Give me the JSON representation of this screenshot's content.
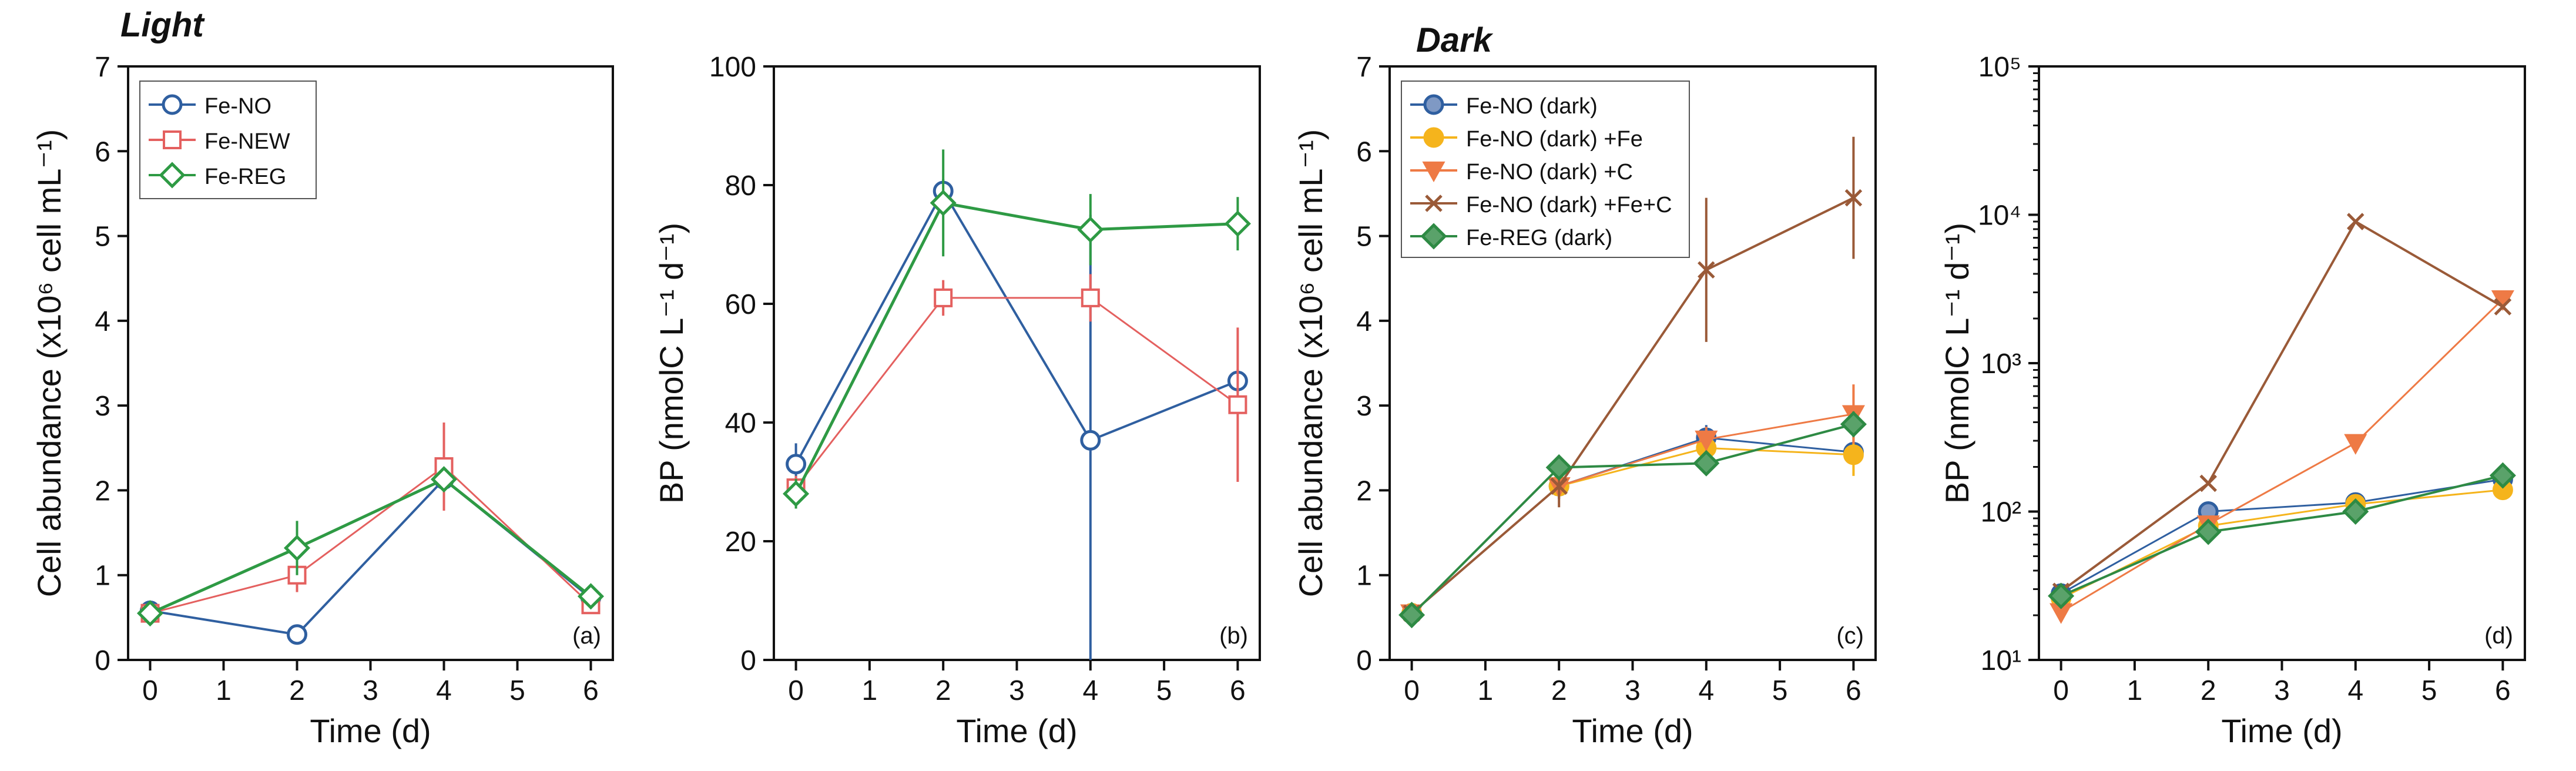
{
  "headings": {
    "light": "Light",
    "dark": "Dark"
  },
  "colors": {
    "fe_no": "#2f5fa0",
    "fe_new": "#e4605f",
    "fe_reg": "#2e9a44",
    "fe_no_dark": "#2f5fa0",
    "fe_no_dark_fe": "#f5b41c",
    "fe_no_dark_c": "#ee7a45",
    "fe_no_dark_fe_c": "#9a5a38",
    "fe_reg_dark": "#2e8a44"
  },
  "chart_data": [
    {
      "id": "a",
      "type": "line",
      "panel_label": "(a)",
      "xlabel": "Time (d)",
      "ylabel": "Cell abundance (x10⁶ cell mL⁻¹)",
      "xlim": [
        -0.3,
        6.3
      ],
      "ylim": [
        0,
        7
      ],
      "yscale": "linear",
      "xticks": [
        0,
        1,
        2,
        3,
        4,
        5,
        6
      ],
      "xtick_labels": [
        "0",
        "1",
        "2",
        "3",
        "4",
        "5",
        "6"
      ],
      "yticks": [
        0,
        1,
        2,
        3,
        4,
        5,
        6,
        7
      ],
      "ytick_labels": [
        "0",
        "1",
        "2",
        "3",
        "4",
        "5",
        "6",
        "7"
      ],
      "legend": "top-left",
      "series": [
        {
          "name": "Fe-NO",
          "color": "fe_no",
          "marker": "circle",
          "fill": "none",
          "lw": 4,
          "x": [
            0,
            2,
            4,
            6
          ],
          "y": [
            0.58,
            0.3,
            2.13,
            0.73
          ],
          "err": [
            0.05,
            0.05,
            0.1,
            0.08
          ]
        },
        {
          "name": "Fe-NEW",
          "color": "fe_new",
          "marker": "square",
          "fill": "none",
          "lw": 3,
          "x": [
            0,
            2,
            4,
            6
          ],
          "y": [
            0.55,
            1.0,
            2.28,
            0.65
          ],
          "err": [
            0.05,
            0.2,
            0.52,
            0.1
          ]
        },
        {
          "name": "Fe-REG",
          "color": "fe_reg",
          "marker": "diamond",
          "fill": "none",
          "lw": 5,
          "x": [
            0,
            2,
            4,
            6
          ],
          "y": [
            0.55,
            1.32,
            2.13,
            0.75
          ],
          "err": [
            0.05,
            0.32,
            0.1,
            0.05
          ]
        }
      ]
    },
    {
      "id": "b",
      "type": "line",
      "panel_label": "(b)",
      "xlabel": "Time (d)",
      "ylabel": "BP (nmolC L⁻¹ d⁻¹)",
      "xlim": [
        -0.3,
        6.3
      ],
      "ylim": [
        0,
        100
      ],
      "yscale": "linear",
      "xticks": [
        0,
        1,
        2,
        3,
        4,
        5,
        6
      ],
      "xtick_labels": [
        "0",
        "1",
        "2",
        "3",
        "4",
        "5",
        "6"
      ],
      "yticks": [
        0,
        20,
        40,
        60,
        80,
        100
      ],
      "ytick_labels": [
        "0",
        "20",
        "40",
        "60",
        "80",
        "100"
      ],
      "legend": "none",
      "series": [
        {
          "name": "Fe-NO",
          "color": "fe_no",
          "marker": "circle",
          "fill": "none",
          "lw": 4,
          "x": [
            0,
            2,
            4,
            6
          ],
          "y": [
            33,
            79,
            37,
            47
          ],
          "err": [
            3.5,
            2,
            38,
            2
          ]
        },
        {
          "name": "Fe-NEW",
          "color": "fe_new",
          "marker": "square",
          "fill": "none",
          "lw": 3,
          "x": [
            0,
            2,
            4,
            6
          ],
          "y": [
            29,
            61,
            61,
            43
          ],
          "err": [
            2,
            3,
            4,
            13
          ]
        },
        {
          "name": "Fe-REG",
          "color": "fe_reg",
          "marker": "diamond",
          "fill": "none",
          "lw": 5,
          "x": [
            0,
            2,
            4,
            6
          ],
          "y": [
            28,
            77,
            72.5,
            73.5
          ],
          "err": [
            2.5,
            9,
            6,
            4.5
          ]
        }
      ]
    },
    {
      "id": "c",
      "type": "line",
      "panel_label": "(c)",
      "xlabel": "Time (d)",
      "ylabel": "Cell abundance (x10⁶ cell mL⁻¹)",
      "xlim": [
        -0.3,
        6.3
      ],
      "ylim": [
        0,
        7
      ],
      "yscale": "linear",
      "xticks": [
        0,
        1,
        2,
        3,
        4,
        5,
        6
      ],
      "xtick_labels": [
        "0",
        "1",
        "2",
        "3",
        "4",
        "5",
        "6"
      ],
      "yticks": [
        0,
        1,
        2,
        3,
        4,
        5,
        6,
        7
      ],
      "ytick_labels": [
        "0",
        "1",
        "2",
        "3",
        "4",
        "5",
        "6",
        "7"
      ],
      "legend": "top-left",
      "series": [
        {
          "name": "Fe-NO (dark)",
          "color": "fe_no_dark",
          "marker": "circle",
          "fill": "#7f99c4",
          "lw": 3,
          "x": [
            0,
            2,
            4,
            6
          ],
          "y": [
            0.55,
            2.05,
            2.62,
            2.45
          ],
          "err": [
            0.05,
            0.15,
            0.15,
            0.1
          ]
        },
        {
          "name": "Fe-NO (dark) +Fe",
          "color": "fe_no_dark_fe",
          "marker": "circle",
          "fill": "#f5b41c",
          "lw": 3,
          "x": [
            0,
            2,
            4,
            6
          ],
          "y": [
            0.55,
            2.05,
            2.5,
            2.42
          ],
          "err": [
            0.05,
            0.1,
            0.1,
            0.25
          ]
        },
        {
          "name": "Fe-NO (dark) +C",
          "color": "fe_no_dark_c",
          "marker": "triangle-down",
          "fill": "#ee7a45",
          "lw": 3,
          "x": [
            0,
            2,
            4,
            6
          ],
          "y": [
            0.55,
            2.05,
            2.6,
            2.9
          ],
          "err": [
            0.05,
            0.1,
            0.15,
            0.35
          ]
        },
        {
          "name": "Fe-NO (dark) +Fe+C",
          "color": "fe_no_dark_fe_c",
          "marker": "x",
          "fill": "none",
          "lw": 4,
          "x": [
            0,
            2,
            4,
            6
          ],
          "y": [
            0.55,
            2.05,
            4.6,
            5.45
          ],
          "err": [
            0.05,
            0.25,
            0.85,
            0.72
          ]
        },
        {
          "name": "Fe-REG (dark)",
          "color": "fe_reg_dark",
          "marker": "diamond",
          "fill": "#5aa26a",
          "lw": 4,
          "x": [
            0,
            2,
            4,
            6
          ],
          "y": [
            0.53,
            2.27,
            2.32,
            2.78
          ],
          "err": [
            0.05,
            0.08,
            0.08,
            0.15
          ]
        }
      ]
    },
    {
      "id": "d",
      "type": "line",
      "panel_label": "(d)",
      "xlabel": "Time (d)",
      "ylabel": "BP (nmolC L⁻¹ d⁻¹)",
      "xlim": [
        -0.3,
        6.3
      ],
      "ylim": [
        10,
        100000
      ],
      "yscale": "log",
      "xticks": [
        0,
        1,
        2,
        3,
        4,
        5,
        6
      ],
      "xtick_labels": [
        "0",
        "1",
        "2",
        "3",
        "4",
        "5",
        "6"
      ],
      "yticks": [
        10,
        100,
        1000,
        10000,
        100000
      ],
      "ytick_labels": [
        "10¹",
        "10²",
        "10³",
        "10⁴",
        "10⁵"
      ],
      "legend": "none",
      "series": [
        {
          "name": "Fe-NO (dark)",
          "color": "fe_no_dark",
          "marker": "circle",
          "fill": "#7f99c4",
          "lw": 3,
          "x": [
            0,
            2,
            4,
            6
          ],
          "y": [
            28,
            100,
            115,
            165
          ]
        },
        {
          "name": "Fe-NO (dark) +Fe",
          "color": "fe_no_dark_fe",
          "marker": "circle",
          "fill": "#f5b41c",
          "lw": 3,
          "x": [
            0,
            2,
            4,
            6
          ],
          "y": [
            26,
            80,
            112,
            140
          ]
        },
        {
          "name": "Fe-NO (dark) +C",
          "color": "fe_no_dark_c",
          "marker": "triangle-down",
          "fill": "#ee7a45",
          "lw": 3,
          "x": [
            0,
            2,
            4,
            6
          ],
          "y": [
            21,
            82,
            290,
            2700
          ]
        },
        {
          "name": "Fe-NO (dark) +Fe+C",
          "color": "fe_no_dark_fe_c",
          "marker": "x",
          "fill": "none",
          "lw": 4,
          "x": [
            0,
            2,
            4,
            6
          ],
          "y": [
            29,
            155,
            9000,
            2400
          ]
        },
        {
          "name": "Fe-REG (dark)",
          "color": "fe_reg_dark",
          "marker": "diamond",
          "fill": "#5aa26a",
          "lw": 4,
          "x": [
            0,
            2,
            4,
            6
          ],
          "y": [
            27,
            73,
            100,
            175
          ]
        }
      ]
    }
  ]
}
